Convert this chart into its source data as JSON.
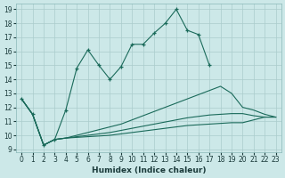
{
  "xlabel": "Humidex (Indice chaleur)",
  "bg_color": "#cce8e8",
  "grid_color": "#aacccc",
  "line_color": "#1a6a5a",
  "xlim_min": -0.5,
  "xlim_max": 23.5,
  "ylim_min": 8.8,
  "ylim_max": 19.4,
  "yticks": [
    9,
    10,
    11,
    12,
    13,
    14,
    15,
    16,
    17,
    18,
    19
  ],
  "xticks": [
    0,
    1,
    2,
    3,
    4,
    5,
    6,
    7,
    8,
    9,
    10,
    11,
    12,
    13,
    14,
    15,
    16,
    17,
    18,
    19,
    20,
    21,
    22,
    23
  ],
  "line_zigzag_x": [
    0,
    1,
    2,
    3,
    4,
    5,
    6,
    7,
    8,
    9,
    10,
    11,
    12,
    13,
    14,
    15,
    16,
    17
  ],
  "line_zigzag_y": [
    12.6,
    11.5,
    9.3,
    9.7,
    11.8,
    14.8,
    16.1,
    15.0,
    14.0,
    14.9,
    16.5,
    16.5,
    17.3,
    18.0,
    19.0,
    17.5,
    17.2,
    15.0
  ],
  "line_diag_x": [
    0,
    1,
    2,
    3,
    4,
    5,
    6,
    7,
    8,
    9,
    10,
    11,
    12,
    13,
    14,
    15,
    16,
    17,
    18,
    19,
    20,
    21,
    22,
    23
  ],
  "line_diag_y": [
    12.6,
    11.5,
    9.3,
    9.7,
    9.8,
    10.0,
    10.2,
    10.4,
    10.6,
    10.8,
    11.1,
    11.4,
    11.7,
    12.0,
    12.3,
    12.6,
    12.9,
    13.2,
    13.5,
    13.0,
    12.0,
    11.8,
    11.5,
    11.3
  ],
  "line_flat1_x": [
    0,
    1,
    2,
    3,
    4,
    5,
    6,
    7,
    8,
    9,
    10,
    11,
    12,
    13,
    14,
    15,
    16,
    17,
    18,
    19,
    20,
    21,
    22,
    23
  ],
  "line_flat1_y": [
    12.6,
    11.5,
    9.3,
    9.7,
    9.8,
    9.9,
    10.0,
    10.1,
    10.2,
    10.35,
    10.5,
    10.65,
    10.8,
    10.95,
    11.1,
    11.25,
    11.35,
    11.45,
    11.5,
    11.55,
    11.55,
    11.4,
    11.3,
    11.3
  ],
  "line_flat2_x": [
    0,
    1,
    2,
    3,
    4,
    5,
    6,
    7,
    8,
    9,
    10,
    11,
    12,
    13,
    14,
    15,
    16,
    17,
    18,
    19,
    20,
    21,
    22,
    23
  ],
  "line_flat2_y": [
    12.6,
    11.5,
    9.3,
    9.7,
    9.8,
    9.85,
    9.9,
    9.95,
    10.0,
    10.1,
    10.2,
    10.3,
    10.4,
    10.5,
    10.6,
    10.7,
    10.75,
    10.8,
    10.85,
    10.9,
    10.9,
    11.1,
    11.3,
    11.3
  ]
}
